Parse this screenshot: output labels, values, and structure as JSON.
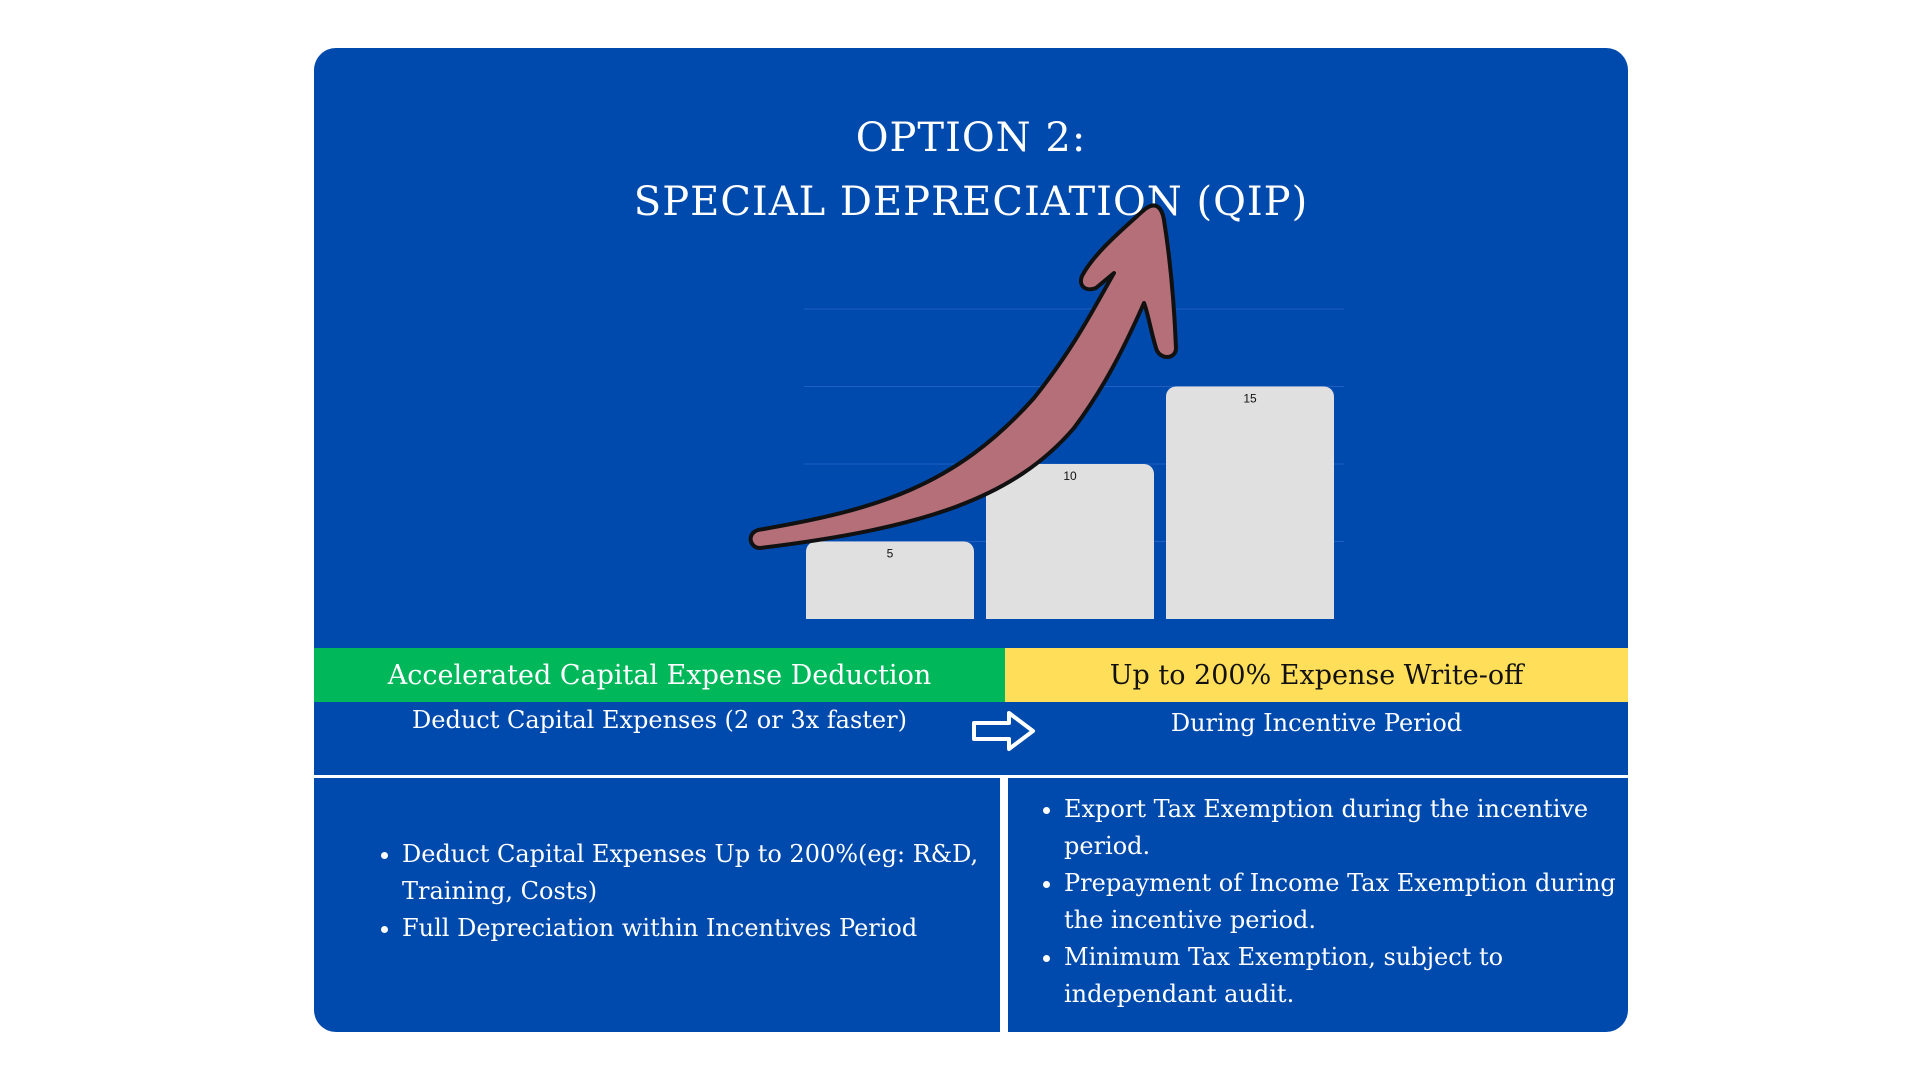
{
  "title": {
    "line1": "OPTION 2:",
    "line2": "SPECIAL DEPRECIATION (QIP)"
  },
  "chart_data": {
    "type": "bar",
    "categories": [
      "",
      "",
      ""
    ],
    "values": [
      5,
      10,
      15
    ],
    "data_labels": [
      "5",
      "10",
      "15"
    ],
    "ylim": [
      0,
      20
    ],
    "grid": true,
    "bar_color": "#e0e0e0",
    "grid_color": "#1f5fbf"
  },
  "decoration": {
    "icon": "growth-arrow-icon",
    "color": "#b56f78"
  },
  "bands": {
    "left_label": "Accelerated Capital Expense Deduction",
    "right_label": "Up to 200% Expense Write-off",
    "left_color": "#00b75a",
    "right_color": "#ffde59"
  },
  "subtitles": {
    "left": "Deduct Capital Expenses (2 or 3x faster)",
    "right": "During Incentive Period",
    "connector_icon": "arrow-right-icon"
  },
  "left_bullets": [
    "Deduct Capital Expenses Up to 200%(eg: R&D, Training, Costs)",
    "Full Depreciation within Incentives Period"
  ],
  "right_bullets": [
    "Export Tax Exemption during the incentive period.",
    "Prepayment of Income Tax Exemption during the incentive period.",
    "Minimum Tax Exemption, subject to independant audit."
  ],
  "colors": {
    "background": "#004aad",
    "text": "#ffffff"
  }
}
